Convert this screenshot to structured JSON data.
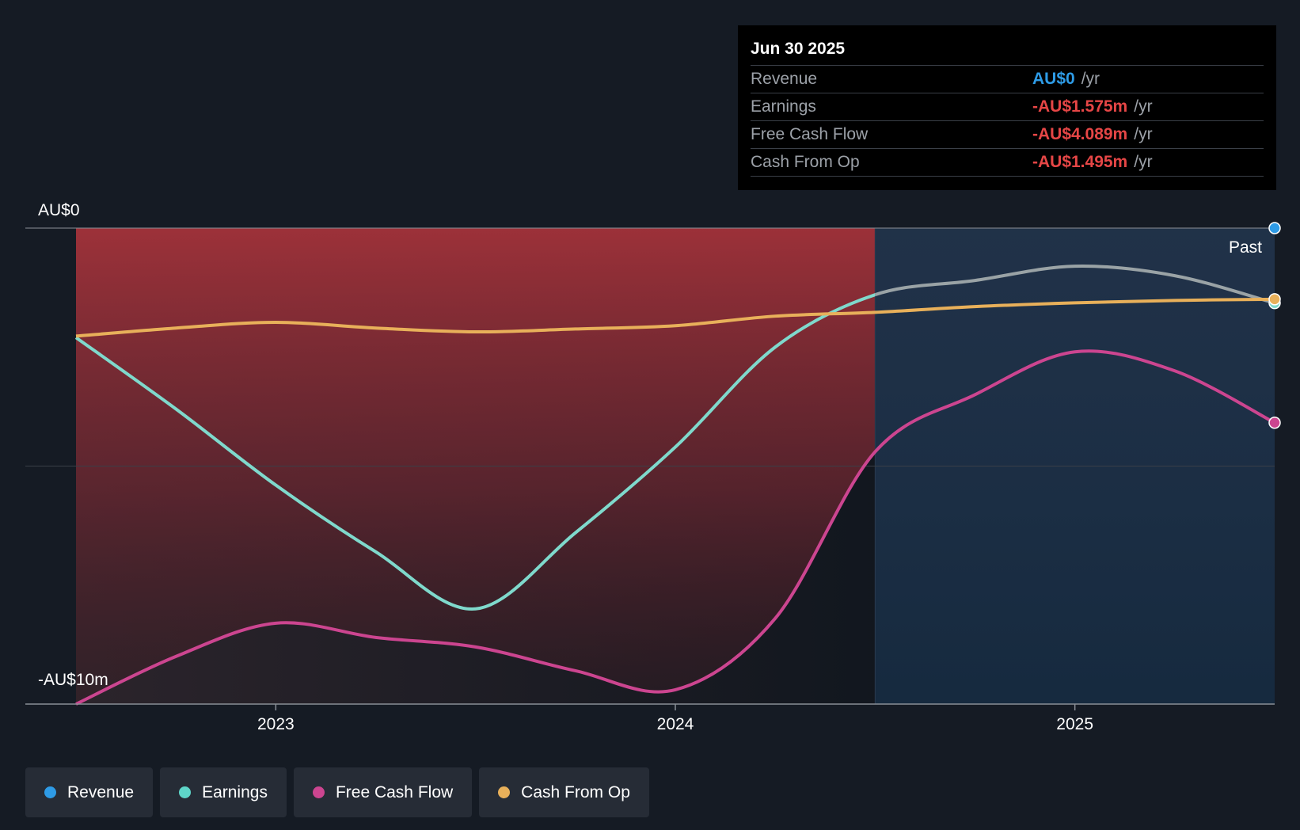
{
  "tooltip": {
    "date": "Jun 30 2025",
    "rows": [
      {
        "label": "Revenue",
        "value": "AU$0",
        "unit": "/yr",
        "color": "#2e9be6"
      },
      {
        "label": "Earnings",
        "value": "-AU$1.575m",
        "unit": "/yr",
        "color": "#e64646"
      },
      {
        "label": "Free Cash Flow",
        "value": "-AU$4.089m",
        "unit": "/yr",
        "color": "#e64646"
      },
      {
        "label": "Cash From Op",
        "value": "-AU$1.495m",
        "unit": "/yr",
        "color": "#e64646"
      }
    ]
  },
  "chart_data": {
    "type": "line",
    "title": "",
    "xlabel": "",
    "ylabel": "",
    "ylim": [
      -10,
      0
    ],
    "xlim": [
      2022.5,
      2025.5
    ],
    "y_tick_labels": [
      "AU$0",
      "-AU$10m"
    ],
    "x_tick_labels": [
      "2023",
      "2024",
      "2025"
    ],
    "x_ticks": [
      2023,
      2024,
      2025
    ],
    "past_label": "Past",
    "past_start": 2024.5,
    "series": [
      {
        "name": "Revenue",
        "color": "#2e9be6",
        "x": [
          2022.5,
          2023.0,
          2023.5,
          2024.0,
          2024.5,
          2025.0,
          2025.5
        ],
        "y": [
          0,
          0,
          0,
          0,
          0,
          0,
          0
        ]
      },
      {
        "name": "Earnings",
        "color": "#7fd9cc",
        "x": [
          2022.5,
          2022.75,
          2023.0,
          2023.25,
          2023.5,
          2023.75,
          2024.0,
          2024.25,
          2024.5,
          2024.75,
          2025.0,
          2025.25,
          2025.5
        ],
        "y": [
          -2.3,
          -3.8,
          -5.4,
          -6.8,
          -8.0,
          -6.4,
          -4.6,
          -2.5,
          -1.4,
          -1.1,
          -0.8,
          -1.0,
          -1.575
        ]
      },
      {
        "name": "Free Cash Flow",
        "color": "#cc4590",
        "x": [
          2022.5,
          2022.75,
          2023.0,
          2023.25,
          2023.5,
          2023.75,
          2024.0,
          2024.25,
          2024.5,
          2024.75,
          2025.0,
          2025.25,
          2025.5
        ],
        "y": [
          -10.0,
          -9.0,
          -8.3,
          -8.6,
          -8.8,
          -9.3,
          -9.7,
          -8.2,
          -4.7,
          -3.5,
          -2.6,
          -3.0,
          -4.089
        ]
      },
      {
        "name": "Cash From Op",
        "color": "#e8b05a",
        "x": [
          2022.5,
          2022.75,
          2023.0,
          2023.25,
          2023.5,
          2023.75,
          2024.0,
          2024.25,
          2024.5,
          2024.75,
          2025.0,
          2025.25,
          2025.5
        ],
        "y": [
          -2.27,
          -2.1,
          -1.98,
          -2.1,
          -2.18,
          -2.12,
          -2.05,
          -1.85,
          -1.77,
          -1.65,
          -1.57,
          -1.52,
          -1.495
        ]
      }
    ]
  },
  "legend": [
    {
      "label": "Revenue",
      "color": "#2e9be6"
    },
    {
      "label": "Earnings",
      "color": "#5ed6c9"
    },
    {
      "label": "Free Cash Flow",
      "color": "#cc4590"
    },
    {
      "label": "Cash From Op",
      "color": "#e8b05a"
    }
  ]
}
